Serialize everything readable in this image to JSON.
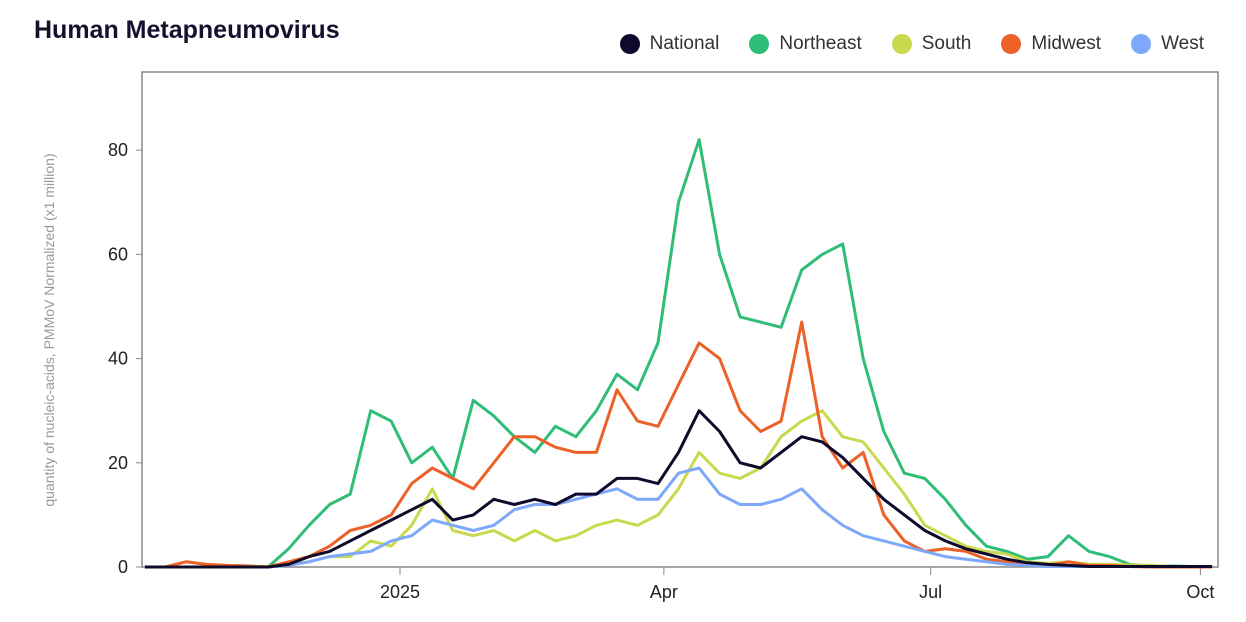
{
  "chart_data": {
    "type": "line",
    "title": "Human Metapneumovirus",
    "xlabel": "",
    "ylabel": "quantity of nucleic-acids, PMMoV Normalized (x1 million)",
    "ylim": [
      0,
      95
    ],
    "xlim": [
      "2024-10-05",
      "2025-10-07"
    ],
    "grid": false,
    "legend_position": "top-right",
    "y_ticks": [
      0,
      20,
      40,
      60,
      80
    ],
    "x_ticks": [
      {
        "date": "2025-01-01",
        "label": "2025"
      },
      {
        "date": "2025-04-01",
        "label": "Apr"
      },
      {
        "date": "2025-07-01",
        "label": "Jul"
      },
      {
        "date": "2025-10-01",
        "label": "Oct"
      }
    ],
    "x": [
      "2024-10-06",
      "2024-10-13",
      "2024-10-20",
      "2024-10-27",
      "2024-11-03",
      "2024-11-10",
      "2024-11-17",
      "2024-11-24",
      "2024-12-01",
      "2024-12-08",
      "2024-12-15",
      "2024-12-22",
      "2024-12-29",
      "2025-01-05",
      "2025-01-12",
      "2025-01-19",
      "2025-01-26",
      "2025-02-02",
      "2025-02-09",
      "2025-02-16",
      "2025-02-23",
      "2025-03-02",
      "2025-03-09",
      "2025-03-16",
      "2025-03-23",
      "2025-03-30",
      "2025-04-06",
      "2025-04-13",
      "2025-04-20",
      "2025-04-27",
      "2025-05-04",
      "2025-05-11",
      "2025-05-18",
      "2025-05-25",
      "2025-06-01",
      "2025-06-08",
      "2025-06-15",
      "2025-06-22",
      "2025-06-29",
      "2025-07-06",
      "2025-07-13",
      "2025-07-20",
      "2025-07-27",
      "2025-08-03",
      "2025-08-10",
      "2025-08-17",
      "2025-08-24",
      "2025-08-31",
      "2025-09-07",
      "2025-09-14",
      "2025-09-21",
      "2025-09-28",
      "2025-10-05"
    ],
    "series": [
      {
        "name": "Northeast",
        "color": "#2fbd77",
        "values": [
          0,
          0,
          0,
          0,
          0.3,
          0.2,
          0,
          3.5,
          8,
          12,
          14,
          30,
          28,
          20,
          23,
          17,
          32,
          29,
          25,
          22,
          27,
          25,
          30,
          37,
          34,
          43,
          70,
          82,
          60,
          48,
          47,
          46,
          57,
          60,
          62,
          40,
          26,
          18,
          17,
          13,
          8,
          4,
          3,
          1.5,
          2,
          6,
          3,
          2,
          0.5,
          0.2,
          0.2,
          0.1,
          0
        ]
      },
      {
        "name": "South",
        "color": "#c9d94e",
        "values": [
          0,
          0,
          1,
          0.5,
          0.1,
          0.1,
          0.1,
          0.5,
          1,
          2,
          2,
          5,
          4,
          8,
          15,
          7,
          6,
          7,
          5,
          7,
          5,
          6,
          8,
          9,
          8,
          10,
          15,
          22,
          18,
          17,
          19,
          25,
          28,
          30,
          25,
          24,
          19,
          14,
          8,
          6,
          4,
          3,
          2.5,
          1,
          0.7,
          1,
          0.5,
          0.5,
          0.4,
          0.3,
          0.1,
          0.1,
          0.1
        ]
      },
      {
        "name": "Midwest",
        "color": "#ec6128",
        "values": [
          0,
          0,
          1,
          0.5,
          0.3,
          0.2,
          0,
          1,
          2,
          4,
          7,
          8,
          10,
          16,
          19,
          17,
          15,
          20,
          25,
          25,
          23,
          22,
          22,
          34,
          28,
          27,
          35,
          43,
          40,
          30,
          26,
          28,
          47,
          25,
          19,
          22,
          10,
          5,
          3,
          3.5,
          3,
          1.5,
          1,
          0.5,
          0.3,
          1,
          0.3,
          0.3,
          0.1,
          0,
          0,
          0,
          0
        ]
      },
      {
        "name": "West",
        "color": "#7ea8fa",
        "values": [
          0,
          0,
          0,
          0,
          0,
          0,
          0,
          0.3,
          1,
          2,
          2.5,
          3,
          5,
          6,
          9,
          8,
          7,
          8,
          11,
          12,
          12,
          13,
          14,
          15,
          13,
          13,
          18,
          19,
          14,
          12,
          12,
          13,
          15,
          11,
          8,
          6,
          5,
          4,
          3,
          2,
          1.5,
          1,
          0.5,
          0.3,
          0.1,
          0.1,
          0.1,
          0.1,
          0.1,
          0.1,
          0.1,
          0.1,
          0.1
        ]
      },
      {
        "name": "National",
        "color": "#0d0a2b",
        "values": [
          0,
          0,
          0,
          0,
          0,
          0,
          0,
          0.5,
          2,
          3,
          5,
          7,
          9,
          11,
          13,
          9,
          10,
          13,
          12,
          13,
          12,
          14,
          14,
          17,
          17,
          16,
          22,
          30,
          26,
          20,
          19,
          22,
          25,
          24,
          21,
          17,
          13,
          10,
          7,
          5,
          3.5,
          2.5,
          1.5,
          0.8,
          0.5,
          0.3,
          0.1,
          0.1,
          0.1,
          0.1,
          0.1,
          0.1,
          0.1
        ]
      }
    ],
    "legend": [
      {
        "name": "National",
        "color": "#0d0a2b"
      },
      {
        "name": "Northeast",
        "color": "#2fbd77"
      },
      {
        "name": "South",
        "color": "#c9d94e"
      },
      {
        "name": "Midwest",
        "color": "#ec6128"
      },
      {
        "name": "West",
        "color": "#7ea8fa"
      }
    ]
  }
}
